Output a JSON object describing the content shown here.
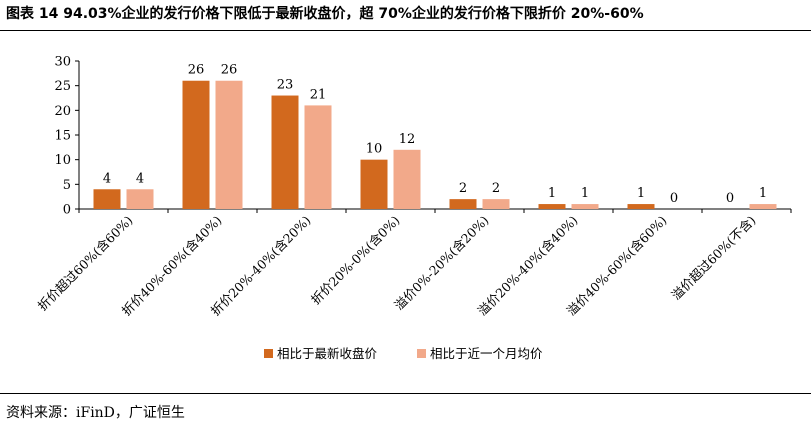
{
  "title": "图表 14 94.03%企业的发行价格下限低于最新收盘价，超 70%企业的发行价格下限折价 20%-60%",
  "source": "资料来源：iFinD，广证恒生",
  "colors": {
    "series1": "#D2691E",
    "series2": "#F2A98A"
  },
  "chart_data": {
    "type": "bar",
    "categories": [
      "折价超过60%(含60%)",
      "折价40%-60%(含40%)",
      "折价20%-40%(含20%)",
      "折价20%-0%(含0%)",
      "溢价0%-20%(含20%)",
      "溢价20%-40%(含40%)",
      "溢价40%-60%(含60%)",
      "溢价超过60%(不含)"
    ],
    "series": [
      {
        "name": "相比于最新收盘价",
        "values": [
          4,
          26,
          23,
          10,
          2,
          1,
          1,
          0
        ]
      },
      {
        "name": "相比于近一个月均价",
        "values": [
          4,
          26,
          21,
          12,
          2,
          1,
          0,
          1
        ]
      }
    ],
    "ylim": [
      0,
      30
    ],
    "yticks": [
      0,
      5,
      10,
      15,
      20,
      25,
      30
    ],
    "legend": "bottom",
    "grid": false
  }
}
